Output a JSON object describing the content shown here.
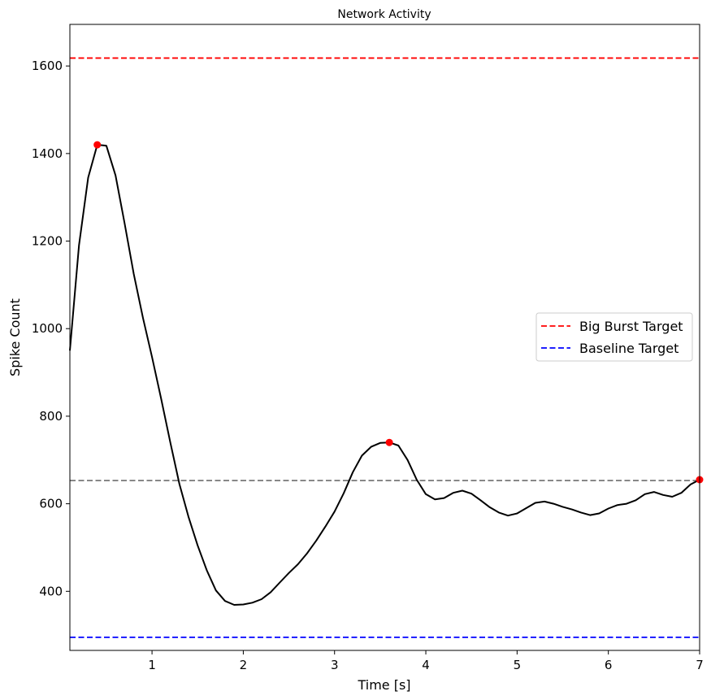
{
  "chart_data": {
    "type": "line",
    "title": "Network Activity",
    "xlabel": "Time [s]",
    "ylabel": "Spike Count",
    "xlim": [
      0.1,
      7
    ],
    "ylim": [
      265,
      1695
    ],
    "xticks": [
      1,
      2,
      3,
      4,
      5,
      6,
      7
    ],
    "yticks": [
      400,
      600,
      800,
      1000,
      1200,
      1400,
      1600
    ],
    "grid": false,
    "legend_position": "center-right",
    "series": [
      {
        "color": "#000000",
        "x": [
          0.1,
          0.2,
          0.3,
          0.4,
          0.5,
          0.6,
          0.7,
          0.8,
          0.9,
          1.0,
          1.1,
          1.2,
          1.3,
          1.4,
          1.5,
          1.6,
          1.7,
          1.8,
          1.9,
          2.0,
          2.1,
          2.2,
          2.3,
          2.4,
          2.5,
          2.6,
          2.7,
          2.8,
          2.9,
          3.0,
          3.1,
          3.2,
          3.3,
          3.4,
          3.5,
          3.6,
          3.7,
          3.8,
          3.9,
          4.0,
          4.1,
          4.2,
          4.3,
          4.4,
          4.5,
          4.6,
          4.7,
          4.8,
          4.9,
          5.0,
          5.1,
          5.2,
          5.3,
          5.4,
          5.5,
          5.6,
          5.7,
          5.8,
          5.9,
          6.0,
          6.1,
          6.2,
          6.3,
          6.4,
          6.5,
          6.6,
          6.7,
          6.8,
          6.9,
          7.0
        ],
        "y": [
          950,
          1190,
          1345,
          1420,
          1418,
          1350,
          1240,
          1125,
          1025,
          935,
          840,
          740,
          645,
          570,
          505,
          448,
          402,
          378,
          369,
          370,
          374,
          382,
          398,
          420,
          442,
          462,
          487,
          516,
          548,
          582,
          624,
          672,
          710,
          730,
          739,
          740,
          733,
          700,
          655,
          622,
          610,
          613,
          625,
          630,
          623,
          608,
          592,
          580,
          573,
          578,
          590,
          602,
          605,
          600,
          593,
          587,
          580,
          574,
          578,
          589,
          597,
          600,
          608,
          622,
          627,
          620,
          616,
          625,
          644,
          655
        ]
      }
    ],
    "reference_lines": [
      {
        "name": "Big Burst Target",
        "y": 1618,
        "color": "#ff0000",
        "style": "dashed"
      },
      {
        "name": "Baseline Target",
        "y": 295,
        "color": "#0000ff",
        "style": "dashed"
      },
      {
        "y": 653,
        "color": "#808080",
        "style": "dashed"
      }
    ],
    "peaks": [
      {
        "x": 0.4,
        "y": 1420
      },
      {
        "x": 3.6,
        "y": 740
      },
      {
        "x": 7.0,
        "y": 655
      }
    ],
    "peak_color": "#ff0000",
    "legend": [
      {
        "label": "Big Burst Target",
        "color": "#ff0000"
      },
      {
        "label": "Baseline Target",
        "color": "#0000ff"
      }
    ]
  }
}
